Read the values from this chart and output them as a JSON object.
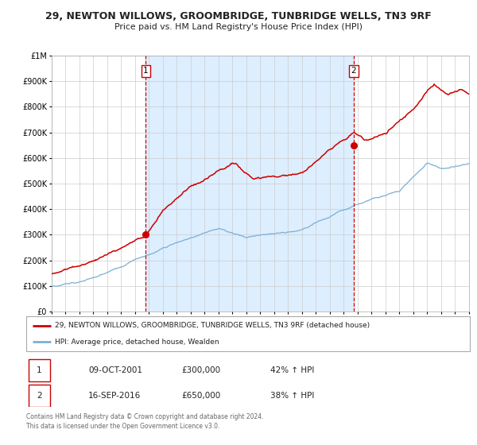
{
  "title": "29, NEWTON WILLOWS, GROOMBRIDGE, TUNBRIDGE WELLS, TN3 9RF",
  "subtitle": "Price paid vs. HM Land Registry's House Price Index (HPI)",
  "legend_line1": "29, NEWTON WILLOWS, GROOMBRIDGE, TUNBRIDGE WELLS, TN3 9RF (detached house)",
  "legend_line2": "HPI: Average price, detached house, Wealden",
  "sale1_date": "09-OCT-2001",
  "sale1_price": "£300,000",
  "sale1_hpi": "42% ↑ HPI",
  "sale1_year": 2001.78,
  "sale1_value": 300000,
  "sale2_date": "16-SEP-2016",
  "sale2_price": "£650,000",
  "sale2_hpi": "38% ↑ HPI",
  "sale2_year": 2016.71,
  "sale2_value": 650000,
  "xmin": 1995,
  "xmax": 2025,
  "ymin": 0,
  "ymax": 1000000,
  "red_color": "#cc0000",
  "blue_color": "#7bafd4",
  "shade_color": "#ddeeff",
  "grid_color": "#cccccc",
  "footer_text": "Contains HM Land Registry data © Crown copyright and database right 2024.\nThis data is licensed under the Open Government Licence v3.0.",
  "background_color": "#ffffff"
}
